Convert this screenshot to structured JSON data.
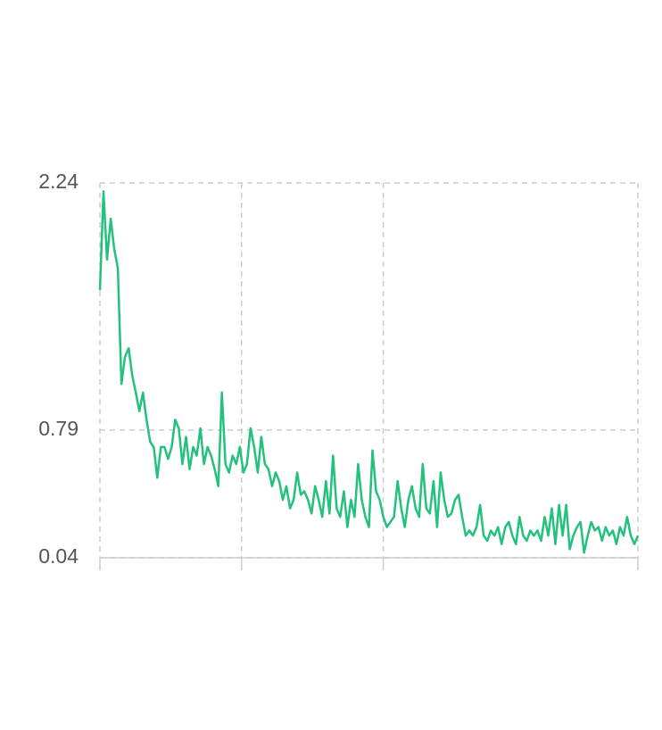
{
  "chart_data": {
    "type": "line",
    "series": [
      {
        "color": "#22c27c",
        "values": [
          1.61,
          2.19,
          1.79,
          2.03,
          1.85,
          1.74,
          1.06,
          1.22,
          1.27,
          1.11,
          1.01,
          0.9,
          1.01,
          0.85,
          0.72,
          0.69,
          0.51,
          0.69,
          0.69,
          0.62,
          0.69,
          0.85,
          0.8,
          0.59,
          0.75,
          0.56,
          0.69,
          0.64,
          0.8,
          0.59,
          0.69,
          0.64,
          0.56,
          0.46,
          1.01,
          0.59,
          0.54,
          0.64,
          0.59,
          0.69,
          0.54,
          0.59,
          0.8,
          0.69,
          0.54,
          0.75,
          0.59,
          0.56,
          0.46,
          0.54,
          0.49,
          0.38,
          0.46,
          0.33,
          0.38,
          0.54,
          0.41,
          0.43,
          0.38,
          0.3,
          0.46,
          0.38,
          0.28,
          0.49,
          0.3,
          0.64,
          0.33,
          0.28,
          0.43,
          0.22,
          0.38,
          0.28,
          0.59,
          0.38,
          0.28,
          0.22,
          0.67,
          0.43,
          0.38,
          0.28,
          0.22,
          0.25,
          0.28,
          0.49,
          0.33,
          0.22,
          0.38,
          0.46,
          0.33,
          0.28,
          0.59,
          0.33,
          0.3,
          0.49,
          0.22,
          0.54,
          0.38,
          0.28,
          0.3,
          0.38,
          0.41,
          0.28,
          0.17,
          0.2,
          0.17,
          0.22,
          0.35,
          0.17,
          0.14,
          0.2,
          0.17,
          0.22,
          0.12,
          0.22,
          0.25,
          0.17,
          0.12,
          0.28,
          0.17,
          0.14,
          0.2,
          0.17,
          0.2,
          0.14,
          0.28,
          0.17,
          0.33,
          0.12,
          0.35,
          0.17,
          0.35,
          0.09,
          0.17,
          0.22,
          0.25,
          0.07,
          0.17,
          0.25,
          0.2,
          0.22,
          0.14,
          0.22,
          0.17,
          0.2,
          0.12,
          0.22,
          0.17,
          0.28,
          0.17,
          0.12,
          0.17
        ]
      }
    ],
    "xlim": [
      0,
      150
    ],
    "xticks": [
      0,
      39.5,
      79,
      150
    ],
    "ylim": [
      0.04,
      2.24
    ],
    "yticks": [
      0.04,
      0.79,
      2.24
    ],
    "grid": true
  }
}
